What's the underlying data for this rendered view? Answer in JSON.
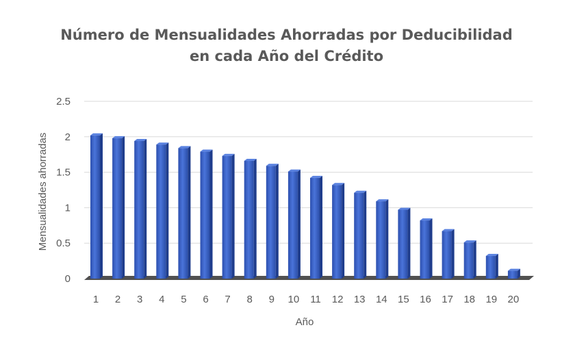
{
  "chart_data": {
    "type": "bar",
    "title_line1": "Número de Mensualidades Ahorradas por Deducibilidad",
    "title_line2": "en cada Año del Crédito",
    "xlabel": "Año",
    "ylabel": "Mensualidades ahorradas",
    "ylim": [
      0,
      2.5
    ],
    "yticks": [
      "0",
      "0.5",
      "1",
      "1.5",
      "2",
      "2.5"
    ],
    "categories": [
      "1",
      "2",
      "3",
      "4",
      "5",
      "6",
      "7",
      "8",
      "9",
      "10",
      "11",
      "12",
      "13",
      "14",
      "15",
      "16",
      "17",
      "18",
      "19",
      "20"
    ],
    "values": [
      2.02,
      1.98,
      1.94,
      1.89,
      1.84,
      1.79,
      1.73,
      1.66,
      1.59,
      1.51,
      1.42,
      1.32,
      1.21,
      1.09,
      0.97,
      0.82,
      0.67,
      0.51,
      0.32,
      0.11
    ],
    "grid": true,
    "legend": "none",
    "colors": {
      "bar": "#3a62c9",
      "bar_dark": "#1f3d8c",
      "floor": "#505050",
      "grid": "#d9d9d9"
    }
  }
}
